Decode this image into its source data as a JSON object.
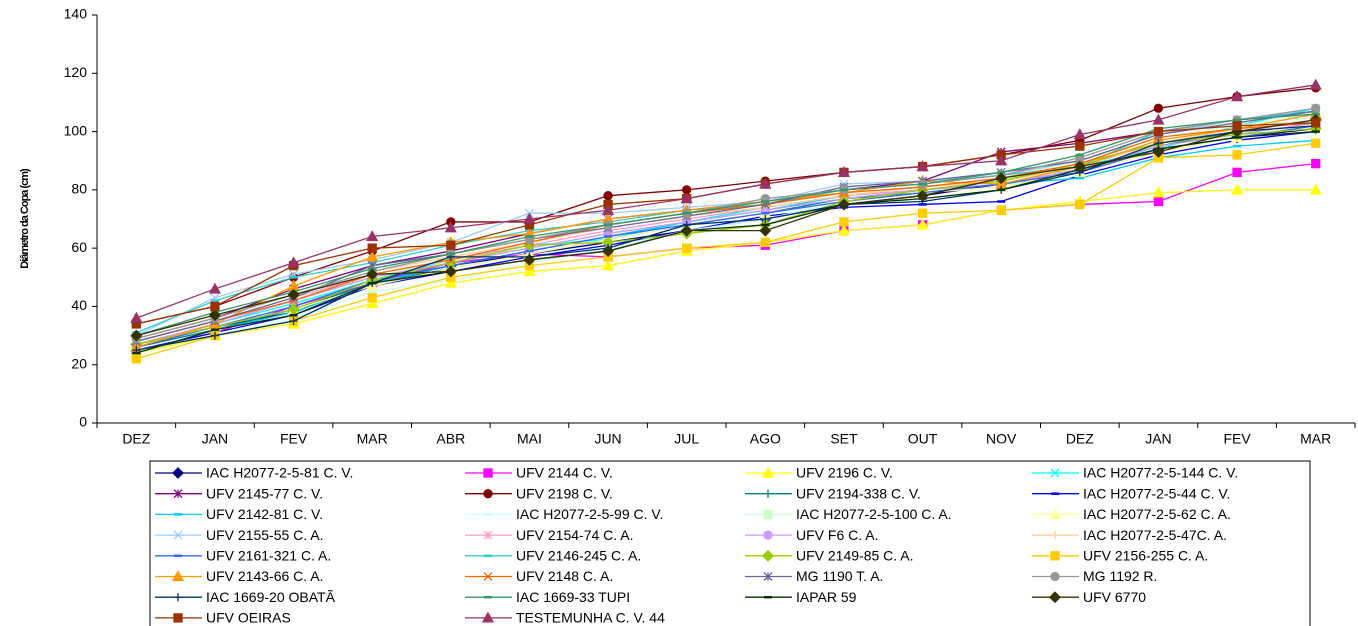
{
  "chart_data": {
    "type": "line",
    "y_label": "Diâmetro da Copa (cm)",
    "categories": [
      "DEZ",
      "JAN",
      "FEV",
      "MAR",
      "ABR",
      "MAI",
      "JUN",
      "JUL",
      "AGO",
      "SET",
      "OUT",
      "NOV",
      "DEZ",
      "JAN",
      "FEV",
      "MAR"
    ],
    "ylim": [
      0,
      140
    ],
    "yticks": [
      0,
      20,
      40,
      60,
      80,
      100,
      120,
      140
    ],
    "grid": false,
    "series": [
      {
        "name": "IAC H2077-2-5-81 C. V.",
        "color": "#000080",
        "marker": "diamond",
        "values": [
          27,
          33,
          38,
          48,
          54,
          58,
          62,
          66,
          70,
          75,
          78,
          82,
          87,
          94,
          98,
          101
        ]
      },
      {
        "name": "UFV 2144 C. V.",
        "color": "#FF00FF",
        "marker": "square",
        "values": [
          25,
          31,
          40,
          48,
          55,
          58,
          57,
          60,
          61,
          66,
          68,
          73,
          75,
          76,
          86,
          89
        ]
      },
      {
        "name": "UFV 2196 C. V.",
        "color": "#FFFF00",
        "marker": "triangle",
        "values": [
          24,
          30,
          34,
          41,
          48,
          52,
          54,
          59,
          62,
          66,
          68,
          73,
          76,
          79,
          80,
          80
        ]
      },
      {
        "name": "IAC H2077-2-5-144 C. V.",
        "color": "#00FFFF",
        "marker": "x",
        "values": [
          26,
          34,
          41,
          49,
          56,
          61,
          63,
          69,
          74,
          78,
          80,
          83,
          88,
          94,
          102,
          108
        ]
      },
      {
        "name": "UFV 2145-77 C. V.",
        "color": "#800080",
        "marker": "star",
        "values": [
          29,
          36,
          46,
          54,
          59,
          65,
          70,
          73,
          76,
          80,
          83,
          93,
          96,
          100,
          104,
          107
        ]
      },
      {
        "name": "UFV 2198 C. V.",
        "color": "#800000",
        "marker": "circle",
        "values": [
          34,
          40,
          50,
          59,
          69,
          69,
          78,
          80,
          83,
          86,
          88,
          92,
          97,
          108,
          112,
          115
        ]
      },
      {
        "name": "UFV 2194-338 C. V.",
        "color": "#008080",
        "marker": "plus",
        "values": [
          26,
          32,
          39,
          48,
          53,
          58,
          63,
          68,
          72,
          77,
          79,
          82,
          87,
          95,
          100,
          104
        ]
      },
      {
        "name": "IAC H2077-2-5-44 C. V.",
        "color": "#0000FF",
        "marker": "dash",
        "values": [
          25,
          31,
          37,
          47,
          52,
          57,
          61,
          66,
          71,
          74,
          75,
          76,
          85,
          92,
          97,
          100
        ]
      },
      {
        "name": "UFV 2142-81 C. V.",
        "color": "#00CCFF",
        "marker": "dash",
        "values": [
          24,
          32,
          38,
          48,
          54,
          59,
          64,
          69,
          73,
          78,
          80,
          82,
          84,
          91,
          95,
          97
        ]
      },
      {
        "name": "IAC H2077-2-5-99 C. V.",
        "color": "#CCFFFF",
        "marker": "dash",
        "values": [
          25,
          30,
          36,
          45,
          49,
          55,
          60,
          66,
          70,
          76,
          79,
          81,
          88,
          97,
          101,
          105
        ]
      },
      {
        "name": "IAC H2077-2-5-100 C. A.",
        "color": "#CCFFCC",
        "marker": "square",
        "values": [
          28,
          35,
          42,
          50,
          56,
          60,
          65,
          71,
          75,
          79,
          81,
          84,
          90,
          98,
          102,
          106
        ]
      },
      {
        "name": "IAC H2077-2-5-62 C. A.",
        "color": "#FFFF99",
        "marker": "triangle",
        "values": [
          27,
          33,
          39,
          47,
          53,
          58,
          63,
          68,
          72,
          76,
          79,
          81,
          86,
          93,
          98,
          102
        ]
      },
      {
        "name": "UFV 2155-55 C. A.",
        "color": "#99CCFF",
        "marker": "x",
        "values": [
          30,
          43,
          51,
          56,
          62,
          72,
          72,
          74,
          76,
          82,
          83,
          85,
          90,
          99,
          104,
          108
        ]
      },
      {
        "name": "UFV 2154-74 C. A.",
        "color": "#FF99CC",
        "marker": "star",
        "values": [
          28,
          35,
          43,
          51,
          56,
          61,
          66,
          70,
          74,
          78,
          80,
          83,
          88,
          96,
          100,
          104
        ]
      },
      {
        "name": "UFV  F6 C. A.",
        "color": "#CC99FF",
        "marker": "circle",
        "values": [
          27,
          34,
          42,
          50,
          55,
          60,
          65,
          69,
          73,
          77,
          80,
          82,
          87,
          95,
          99,
          103
        ]
      },
      {
        "name": "IAC H2077-2-5-47C. A.",
        "color": "#FFCC99",
        "marker": "plus",
        "values": [
          29,
          36,
          44,
          52,
          57,
          62,
          67,
          71,
          74,
          78,
          81,
          83,
          88,
          96,
          101,
          104
        ]
      },
      {
        "name": "UFV 2161-321 C. A.",
        "color": "#3366FF",
        "marker": "dash",
        "values": [
          26,
          33,
          40,
          49,
          54,
          59,
          64,
          68,
          72,
          76,
          79,
          82,
          86,
          94,
          98,
          102
        ]
      },
      {
        "name": "UFV 2146-245 C. A.",
        "color": "#33CCCC",
        "marker": "dash",
        "values": [
          31,
          42,
          50,
          55,
          61,
          66,
          69,
          73,
          75,
          80,
          82,
          85,
          88,
          100,
          104,
          107
        ]
      },
      {
        "name": "UFV 2149-85 C. A.",
        "color": "#99CC00",
        "marker": "diamond",
        "values": [
          27,
          33,
          39,
          49,
          55,
          61,
          62,
          65,
          68,
          76,
          80,
          83,
          89,
          96,
          99,
          101
        ]
      },
      {
        "name": "UFV 2156-255 C. A.",
        "color": "#FFCC00",
        "marker": "square",
        "values": [
          22,
          30,
          35,
          43,
          50,
          54,
          57,
          60,
          62,
          69,
          72,
          73,
          75,
          91,
          92,
          96
        ]
      },
      {
        "name": "UFV 2143-66 C. A.",
        "color": "#FF9900",
        "marker": "triangle",
        "values": [
          26,
          34,
          47,
          57,
          62,
          65,
          70,
          73,
          76,
          79,
          83,
          82,
          88,
          97,
          101,
          106
        ]
      },
      {
        "name": "UFV 2148 C. A.",
        "color": "#FF6600",
        "marker": "x",
        "values": [
          28,
          35,
          42,
          51,
          56,
          62,
          68,
          72,
          75,
          79,
          81,
          84,
          89,
          98,
          101,
          103
        ]
      },
      {
        "name": "MG 1190 T. A.",
        "color": "#666699",
        "marker": "star",
        "values": [
          28,
          35,
          43,
          54,
          58,
          63,
          67,
          71,
          75,
          81,
          83,
          86,
          90,
          99,
          103,
          107
        ]
      },
      {
        "name": "MG 1192 R.",
        "color": "#969696",
        "marker": "circle",
        "values": [
          29,
          36,
          44,
          52,
          58,
          63,
          68,
          72,
          77,
          80,
          82,
          85,
          91,
          100,
          104,
          108
        ]
      },
      {
        "name": "IAC 1669-20 OBATÃ",
        "color": "#003366",
        "marker": "plus",
        "values": [
          25,
          30,
          35,
          48,
          57,
          57,
          60,
          68,
          70,
          75,
          76,
          80,
          86,
          96,
          100,
          102
        ]
      },
      {
        "name": "IAC 1669-33 TUPI",
        "color": "#339966",
        "marker": "dash",
        "values": [
          30,
          38,
          45,
          53,
          58,
          64,
          68,
          72,
          76,
          80,
          82,
          86,
          92,
          101,
          104,
          106
        ]
      },
      {
        "name": "IAPAR 59",
        "color": "#003300",
        "marker": "dash",
        "values": [
          24,
          32,
          37,
          48,
          52,
          56,
          59,
          66,
          68,
          75,
          77,
          80,
          87,
          94,
          98,
          100
        ]
      },
      {
        "name": "UFV 6770",
        "color": "#333300",
        "marker": "diamond",
        "values": [
          30,
          37,
          44,
          51,
          52,
          56,
          59,
          66,
          66,
          75,
          78,
          84,
          88,
          93,
          100,
          104
        ]
      },
      {
        "name": "UFV OEIRAS",
        "color": "#993300",
        "marker": "square",
        "values": [
          34,
          40,
          54,
          60,
          61,
          68,
          75,
          77,
          82,
          86,
          88,
          92,
          95,
          100,
          102,
          103
        ]
      },
      {
        "name": "TESTEMUNHA C. V. 44",
        "color": "#993366",
        "marker": "triangle",
        "values": [
          36,
          46,
          55,
          64,
          67,
          70,
          73,
          77,
          82,
          86,
          88,
          90,
          99,
          104,
          112,
          116
        ]
      }
    ]
  }
}
